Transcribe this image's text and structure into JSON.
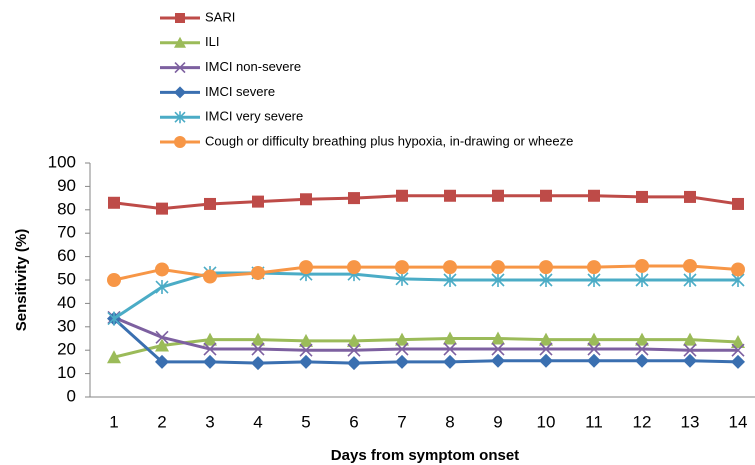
{
  "chart_data": {
    "type": "line",
    "x_label": "Days from symptom onset",
    "y_label": "Sensitivity (%)",
    "categories": [
      "1",
      "2",
      "3",
      "4",
      "5",
      "6",
      "7",
      "8",
      "9",
      "10",
      "11",
      "12",
      "13",
      "14"
    ],
    "ylim": [
      0,
      100
    ],
    "yticks": [
      0,
      10,
      20,
      30,
      40,
      50,
      60,
      70,
      80,
      90,
      100
    ],
    "series": [
      {
        "name": "SARI",
        "color": "#be4b48",
        "marker": "square",
        "values": [
          83,
          80.5,
          82.5,
          83.5,
          84.5,
          85,
          86,
          86,
          86,
          86,
          86,
          85.5,
          85.5,
          82.5
        ]
      },
      {
        "name": "ILI",
        "color": "#9bbb59",
        "marker": "triangle",
        "values": [
          17,
          22,
          24.5,
          24.5,
          24,
          24,
          24.5,
          25,
          25,
          24.5,
          24.5,
          24.5,
          24.5,
          23.5
        ]
      },
      {
        "name": "IMCI non-severe",
        "color": "#7d60a0",
        "marker": "x",
        "values": [
          34,
          25.5,
          20.5,
          20.5,
          20,
          20,
          20.5,
          20.5,
          20.5,
          20.5,
          20.5,
          20.5,
          20,
          20
        ]
      },
      {
        "name": "IMCI severe",
        "color": "#3a6fb0",
        "marker": "diamond",
        "values": [
          33.5,
          15,
          15,
          14.5,
          15,
          14.5,
          15,
          15,
          15.5,
          15.5,
          15.5,
          15.5,
          15.5,
          15
        ]
      },
      {
        "name": "IMCI very severe",
        "color": "#4bacc6",
        "marker": "asterisk",
        "values": [
          33.5,
          47,
          53,
          53,
          52.5,
          52.5,
          50.5,
          50,
          50,
          50,
          50,
          50,
          50,
          50
        ]
      },
      {
        "name": "Cough or difficulty breathing plus hypoxia, in-drawing or wheeze",
        "color": "#f79646",
        "marker": "circle",
        "values": [
          50,
          54.5,
          51.5,
          53,
          55.5,
          55.5,
          55.5,
          55.5,
          55.5,
          55.5,
          55.5,
          56,
          56,
          54.5
        ]
      }
    ]
  }
}
